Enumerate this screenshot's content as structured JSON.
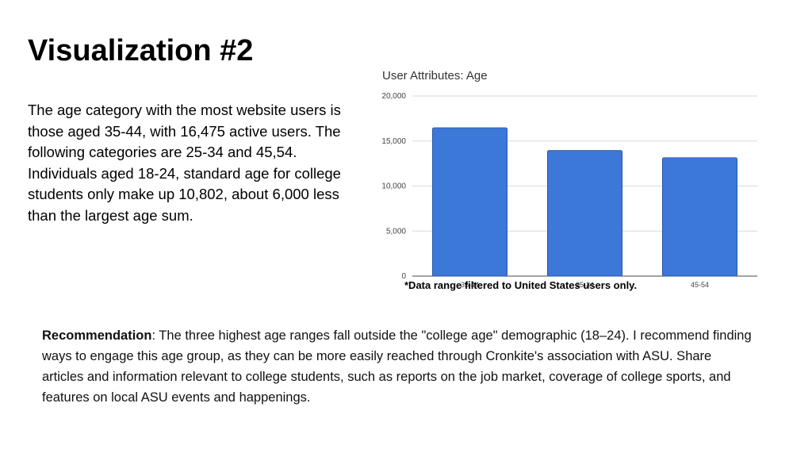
{
  "slide": {
    "title": "Visualization #2",
    "summary": "The age category with the most website users is those aged 35-44, with 16,475 active users. The following categories are 25-34 and 45,54. Individuals aged 18-24, standard age for college students only make up 10,802, about 6,000 less than the largest age sum.",
    "footnote": "*Data range filtered to United States users only.",
    "recommendation_label": "Recommendation",
    "recommendation_text": ": The three highest age ranges fall outside the \"college age\" demographic (18–24). I recommend finding ways to engage this age group, as they can be more easily reached through Cronkite's association with ASU. Share articles and information relevant to college students, such as reports on the job market, coverage of college sports, and features on local ASU events and happenings."
  },
  "colors": {
    "bar": "#3c78d8",
    "grid": "#d9d9d9"
  },
  "chart_data": {
    "type": "bar",
    "title": "User Attributes: Age",
    "categories": [
      "35-44",
      "25-34",
      "45-54"
    ],
    "values": [
      16475,
      13950,
      13150
    ],
    "yticks": [
      0,
      5000,
      10000,
      15000,
      20000
    ],
    "ytick_labels": [
      "0",
      "5,000",
      "10,000",
      "15,000",
      "20,000"
    ],
    "ylim": [
      0,
      20000
    ],
    "grid": true,
    "legend": "none"
  }
}
